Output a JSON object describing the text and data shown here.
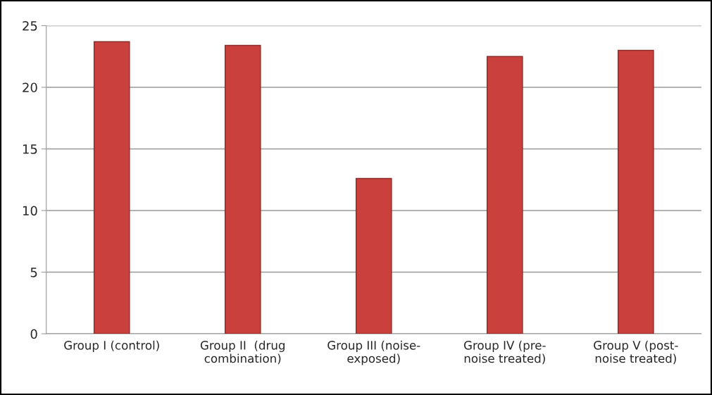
{
  "chart_data": {
    "type": "bar",
    "categories": [
      "Group I (control)",
      "Group II  (drug\ncombination)",
      "Group III (noise-\nexposed)",
      "Group IV (pre-\nnoise treated)",
      "Group V (post-\nnoise treated)"
    ],
    "values": [
      23.7,
      23.4,
      12.6,
      22.5,
      23.0
    ],
    "color": "#c9403c",
    "ylim": [
      0,
      25
    ],
    "yticks": [
      0,
      5,
      10,
      15,
      20,
      25
    ],
    "grid": "y",
    "legend": false
  }
}
